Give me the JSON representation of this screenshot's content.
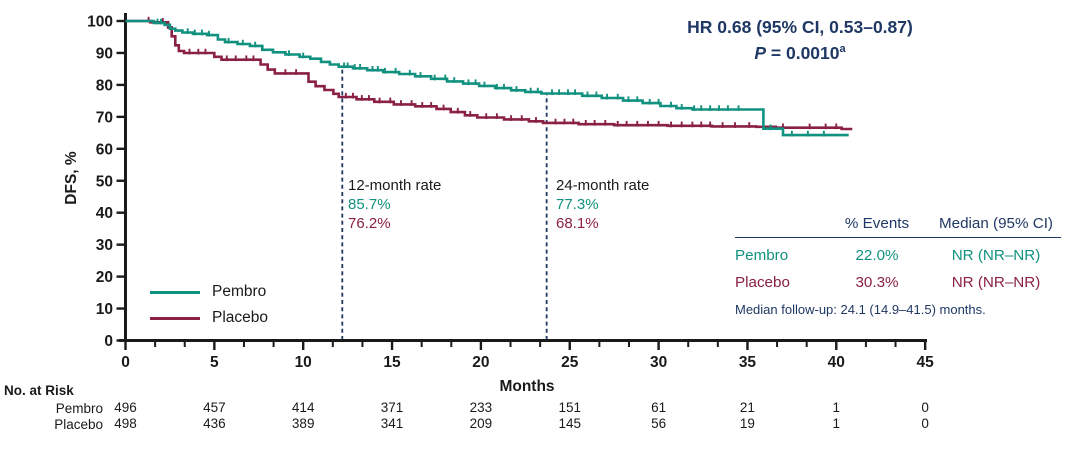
{
  "colors": {
    "teal": "#11917F",
    "maroon": "#8A2045",
    "navy": "#1F3864",
    "axis": "#1a1a1a"
  },
  "chart_data": {
    "type": "line",
    "subtype": "kaplan-meier-step",
    "title": "",
    "xlabel": "Months",
    "ylabel": "DFS, %",
    "xlim": [
      0,
      45
    ],
    "ylim": [
      0,
      100
    ],
    "xticks": [
      0,
      5,
      10,
      15,
      20,
      25,
      30,
      35,
      40,
      45
    ],
    "yticks": [
      0,
      10,
      20,
      30,
      40,
      50,
      60,
      70,
      80,
      90,
      100
    ],
    "grid": false,
    "hr_annotation": {
      "line1": "HR 0.68 (95% CI, 0.53–0.87)",
      "p_label": "P",
      "p_value": " = 0.0010",
      "p_sup": "a"
    },
    "rate_annotations": [
      {
        "label": "12-month rate",
        "x": 12.2,
        "pembro": "85.7%",
        "placebo": "76.2%"
      },
      {
        "label": "24-month rate",
        "x": 23.7,
        "pembro": "77.3%",
        "placebo": "68.1%"
      }
    ],
    "series": [
      {
        "name": "Pembro",
        "color_key": "teal",
        "steps": [
          [
            0,
            100
          ],
          [
            1.6,
            99.4
          ],
          [
            2.2,
            98.8
          ],
          [
            2.5,
            97.6
          ],
          [
            2.8,
            97.0
          ],
          [
            3.2,
            96.4
          ],
          [
            3.8,
            96.0
          ],
          [
            4.6,
            95.6
          ],
          [
            5.2,
            94.2
          ],
          [
            5.6,
            93.4
          ],
          [
            6.3,
            92.8
          ],
          [
            7.0,
            92.2
          ],
          [
            7.7,
            91.0
          ],
          [
            8.3,
            90.2
          ],
          [
            9.0,
            89.5
          ],
          [
            9.8,
            88.8
          ],
          [
            10.4,
            88.2
          ],
          [
            11.0,
            87.2
          ],
          [
            11.5,
            86.4
          ],
          [
            12.0,
            85.7
          ],
          [
            12.8,
            85.2
          ],
          [
            13.6,
            84.6
          ],
          [
            14.5,
            84.0
          ],
          [
            15.4,
            83.4
          ],
          [
            16.3,
            82.7
          ],
          [
            17.2,
            81.9
          ],
          [
            18.1,
            81.1
          ],
          [
            19.0,
            80.4
          ],
          [
            19.9,
            79.7
          ],
          [
            20.8,
            79.0
          ],
          [
            21.7,
            78.3
          ],
          [
            22.5,
            77.8
          ],
          [
            23.4,
            77.3
          ],
          [
            25.7,
            76.6
          ],
          [
            26.8,
            75.9
          ],
          [
            28.0,
            75.1
          ],
          [
            29.1,
            74.3
          ],
          [
            30.1,
            73.4
          ],
          [
            31.0,
            72.7
          ],
          [
            31.9,
            72.3
          ],
          [
            35.9,
            66.3
          ],
          [
            37.0,
            64.3
          ]
        ],
        "end": 40.7,
        "censors": [
          1.8,
          2.0,
          3.5,
          3.9,
          4.3,
          4.7,
          5.8,
          6.6,
          7.3,
          9.2,
          10.0,
          12.3,
          12.5,
          12.9,
          13.2,
          13.9,
          14.2,
          14.6,
          15.2,
          16.0,
          16.6,
          17.4,
          18.0,
          18.5,
          19.3,
          19.7,
          20.2,
          20.9,
          21.3,
          22.0,
          22.8,
          23.2,
          24.0,
          24.4,
          24.9,
          25.3,
          26.0,
          26.5,
          27.1,
          27.7,
          28.3,
          28.8,
          29.5,
          30.0,
          30.7,
          31.3,
          32.0,
          32.4,
          32.9,
          33.4,
          33.9,
          34.5,
          36.3,
          37.5,
          38.4,
          39.3
        ]
      },
      {
        "name": "Placebo",
        "color_key": "maroon",
        "steps": [
          [
            0,
            100
          ],
          [
            1.4,
            99.6
          ],
          [
            2.4,
            98.0
          ],
          [
            2.6,
            95.2
          ],
          [
            2.8,
            92.4
          ],
          [
            3.0,
            90.6
          ],
          [
            3.3,
            90.0
          ],
          [
            5.0,
            88.8
          ],
          [
            5.4,
            87.9
          ],
          [
            7.6,
            86.4
          ],
          [
            8.0,
            84.8
          ],
          [
            8.4,
            83.6
          ],
          [
            10.3,
            81.0
          ],
          [
            10.7,
            79.6
          ],
          [
            11.2,
            78.4
          ],
          [
            11.7,
            77.2
          ],
          [
            12.0,
            76.2
          ],
          [
            13.0,
            75.5
          ],
          [
            14.0,
            74.7
          ],
          [
            15.1,
            73.9
          ],
          [
            16.3,
            73.3
          ],
          [
            17.5,
            72.5
          ],
          [
            18.3,
            71.5
          ],
          [
            19.1,
            70.5
          ],
          [
            19.8,
            69.8
          ],
          [
            21.3,
            69.2
          ],
          [
            22.7,
            68.6
          ],
          [
            23.5,
            68.1
          ],
          [
            25.5,
            67.7
          ],
          [
            27.5,
            67.4
          ],
          [
            30.5,
            67.2
          ],
          [
            33.0,
            67.0
          ],
          [
            35.5,
            66.9
          ],
          [
            36.6,
            66.6
          ],
          [
            40.3,
            66.2
          ]
        ],
        "end": 40.9,
        "censors": [
          1.3,
          2.1,
          3.6,
          4.1,
          4.5,
          5.7,
          6.2,
          6.8,
          7.2,
          9.0,
          9.6,
          12.4,
          12.8,
          13.3,
          13.7,
          14.3,
          14.9,
          15.5,
          16.1,
          16.7,
          17.2,
          17.9,
          18.7,
          19.4,
          20.3,
          20.9,
          21.7,
          22.3,
          23.1,
          24.2,
          24.7,
          25.2,
          25.9,
          26.4,
          27.0,
          27.7,
          28.2,
          28.8,
          29.4,
          30.0,
          30.7,
          31.3,
          31.9,
          32.4,
          32.9,
          33.6,
          34.3,
          35.1,
          37.0,
          38.5,
          39.4,
          40.0
        ]
      }
    ],
    "legend": {
      "position": "lower-left"
    },
    "stats_table": {
      "headers": [
        "% Events",
        "Median (95% CI)"
      ],
      "rows": [
        {
          "name": "Pembro",
          "events": "22.0%",
          "median": "NR (NR–NR)"
        },
        {
          "name": "Placebo",
          "events": "30.3%",
          "median": "NR (NR–NR)"
        }
      ],
      "footnote": "Median follow-up: 24.1 (14.9–41.5) months."
    },
    "risk_table": {
      "title": "No. at Risk",
      "months": [
        0,
        5,
        10,
        15,
        20,
        25,
        30,
        35,
        40,
        45
      ],
      "rows": [
        {
          "name": "Pembro",
          "counts": [
            496,
            457,
            414,
            371,
            233,
            151,
            61,
            21,
            1,
            0
          ]
        },
        {
          "name": "Placebo",
          "counts": [
            498,
            436,
            389,
            341,
            209,
            145,
            56,
            19,
            1,
            0
          ]
        }
      ]
    }
  }
}
